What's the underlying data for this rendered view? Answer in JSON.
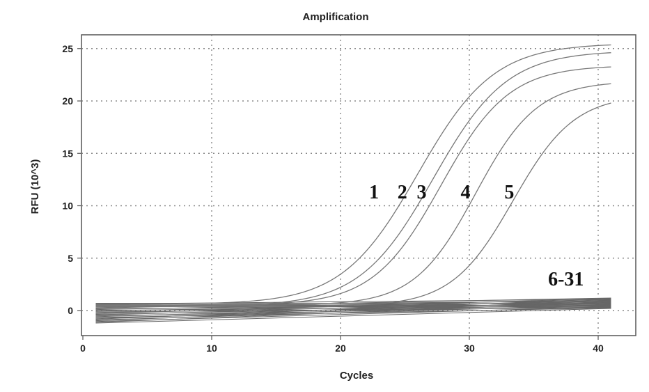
{
  "chart_data": {
    "type": "line",
    "title": "Amplification",
    "xlabel": "Cycles",
    "ylabel": "RFU (10^3)",
    "xlim": [
      0,
      42
    ],
    "ylim": [
      -2,
      26
    ],
    "x_ticks": [
      0,
      10,
      20,
      30,
      40
    ],
    "y_ticks": [
      0,
      5,
      10,
      15,
      20,
      25
    ],
    "grid": true,
    "series": [
      {
        "name": "1",
        "baseline": 0.6,
        "plateau": 25.5,
        "midpoint": 26.0,
        "slope": 0.34,
        "start_cycle": 1,
        "end_cycle": 41
      },
      {
        "name": "2",
        "baseline": 0.4,
        "plateau": 24.8,
        "midpoint": 27.2,
        "slope": 0.35,
        "start_cycle": 1,
        "end_cycle": 41
      },
      {
        "name": "3",
        "baseline": 0.5,
        "plateau": 23.4,
        "midpoint": 27.8,
        "slope": 0.38,
        "start_cycle": 1,
        "end_cycle": 41
      },
      {
        "name": "4",
        "baseline": 0.5,
        "plateau": 21.9,
        "midpoint": 30.5,
        "slope": 0.42,
        "start_cycle": 1,
        "end_cycle": 41
      },
      {
        "name": "5",
        "baseline": 0.4,
        "plateau": 20.6,
        "midpoint": 33.4,
        "slope": 0.42,
        "start_cycle": 1,
        "end_cycle": 41
      }
    ],
    "background_series": {
      "name": "6-31",
      "count": 26,
      "start_cycle": 1,
      "end_cycle": 41,
      "start_range": [
        -1.2,
        0.7
      ],
      "end_range": [
        0.2,
        1.2
      ]
    },
    "annotations": [
      {
        "text": "1",
        "x": 22.6,
        "y": 10.7
      },
      {
        "text": "2",
        "x": 24.8,
        "y": 10.7
      },
      {
        "text": "3",
        "x": 26.3,
        "y": 10.7
      },
      {
        "text": "4",
        "x": 29.7,
        "y": 10.7
      },
      {
        "text": "5",
        "x": 33.1,
        "y": 10.7
      },
      {
        "text": "6-31",
        "x": 37.5,
        "y": 2.4
      }
    ]
  }
}
